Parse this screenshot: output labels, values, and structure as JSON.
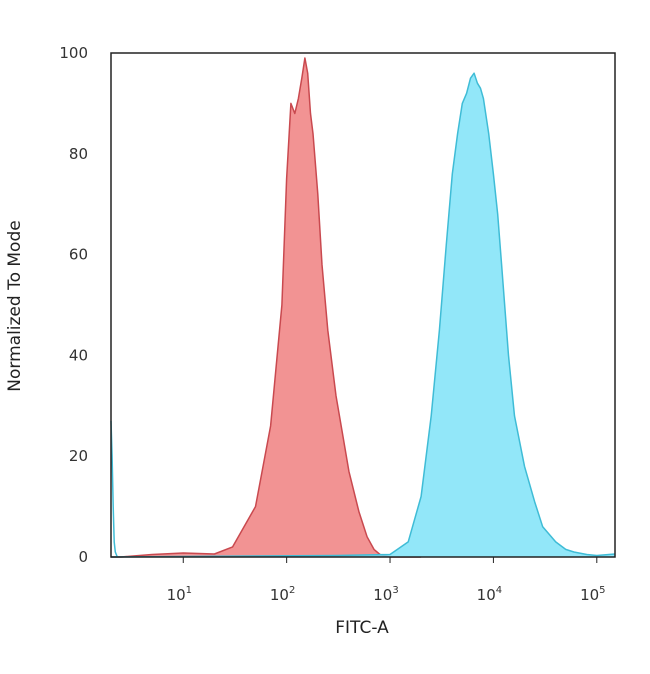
{
  "chart_data": {
    "type": "area",
    "title": "",
    "xlabel": "FITC-A",
    "ylabel": "Normalized To Mode",
    "xscale": "log",
    "xlim": [
      2,
      150000
    ],
    "ylim": [
      0,
      100
    ],
    "grid": false,
    "legend": "none",
    "y_ticks": [
      0,
      20,
      40,
      60,
      80,
      100
    ],
    "x_ticks": [
      {
        "base": "10",
        "exp": "1",
        "value": 10
      },
      {
        "base": "10",
        "exp": "2",
        "value": 100
      },
      {
        "base": "10",
        "exp": "3",
        "value": 1000
      },
      {
        "base": "10",
        "exp": "4",
        "value": 10000
      },
      {
        "base": "10",
        "exp": "5",
        "value": 100000
      }
    ],
    "series": [
      {
        "color": "#f08080",
        "stroke": "#c9494f",
        "x": [
          2,
          2.2,
          2.5,
          5,
          10,
          20,
          30,
          50,
          70,
          90,
          100,
          110,
          120,
          130,
          140,
          150,
          160,
          170,
          180,
          200,
          220,
          250,
          300,
          350,
          400,
          500,
          600,
          700,
          800,
          900,
          1000,
          1200,
          2000
        ],
        "y": [
          0,
          0,
          0,
          0.5,
          0.8,
          0.6,
          2,
          10,
          26,
          50,
          75,
          90,
          88,
          91,
          95,
          99,
          96,
          88,
          84,
          72,
          58,
          45,
          32,
          24,
          17,
          9,
          4,
          1.5,
          0.5,
          0.2,
          0,
          0,
          0
        ]
      },
      {
        "color": "#7fe3f8",
        "stroke": "#3fbcd6",
        "x": [
          2,
          300,
          1000,
          1500,
          2000,
          2500,
          3000,
          3500,
          4000,
          4500,
          5000,
          5500,
          6000,
          6500,
          7000,
          7500,
          8000,
          9000,
          10000,
          11000,
          12000,
          14000,
          16000,
          20000,
          25000,
          30000,
          40000,
          50000,
          60000,
          80000,
          100000,
          150000
        ],
        "y": [
          0,
          0.3,
          0.5,
          3,
          12,
          28,
          45,
          62,
          76,
          84,
          90,
          92,
          95,
          96,
          94,
          93,
          91,
          84,
          76,
          68,
          58,
          40,
          28,
          18,
          11,
          6,
          3,
          1.5,
          1,
          0.5,
          0.3,
          0.6
        ]
      },
      {
        "color": "none",
        "stroke": "#3fbcd6",
        "x": [
          2,
          2.05,
          2.1,
          2.15,
          2.2,
          2.3
        ],
        "y": [
          27,
          20,
          10,
          3,
          1,
          0
        ]
      }
    ]
  }
}
